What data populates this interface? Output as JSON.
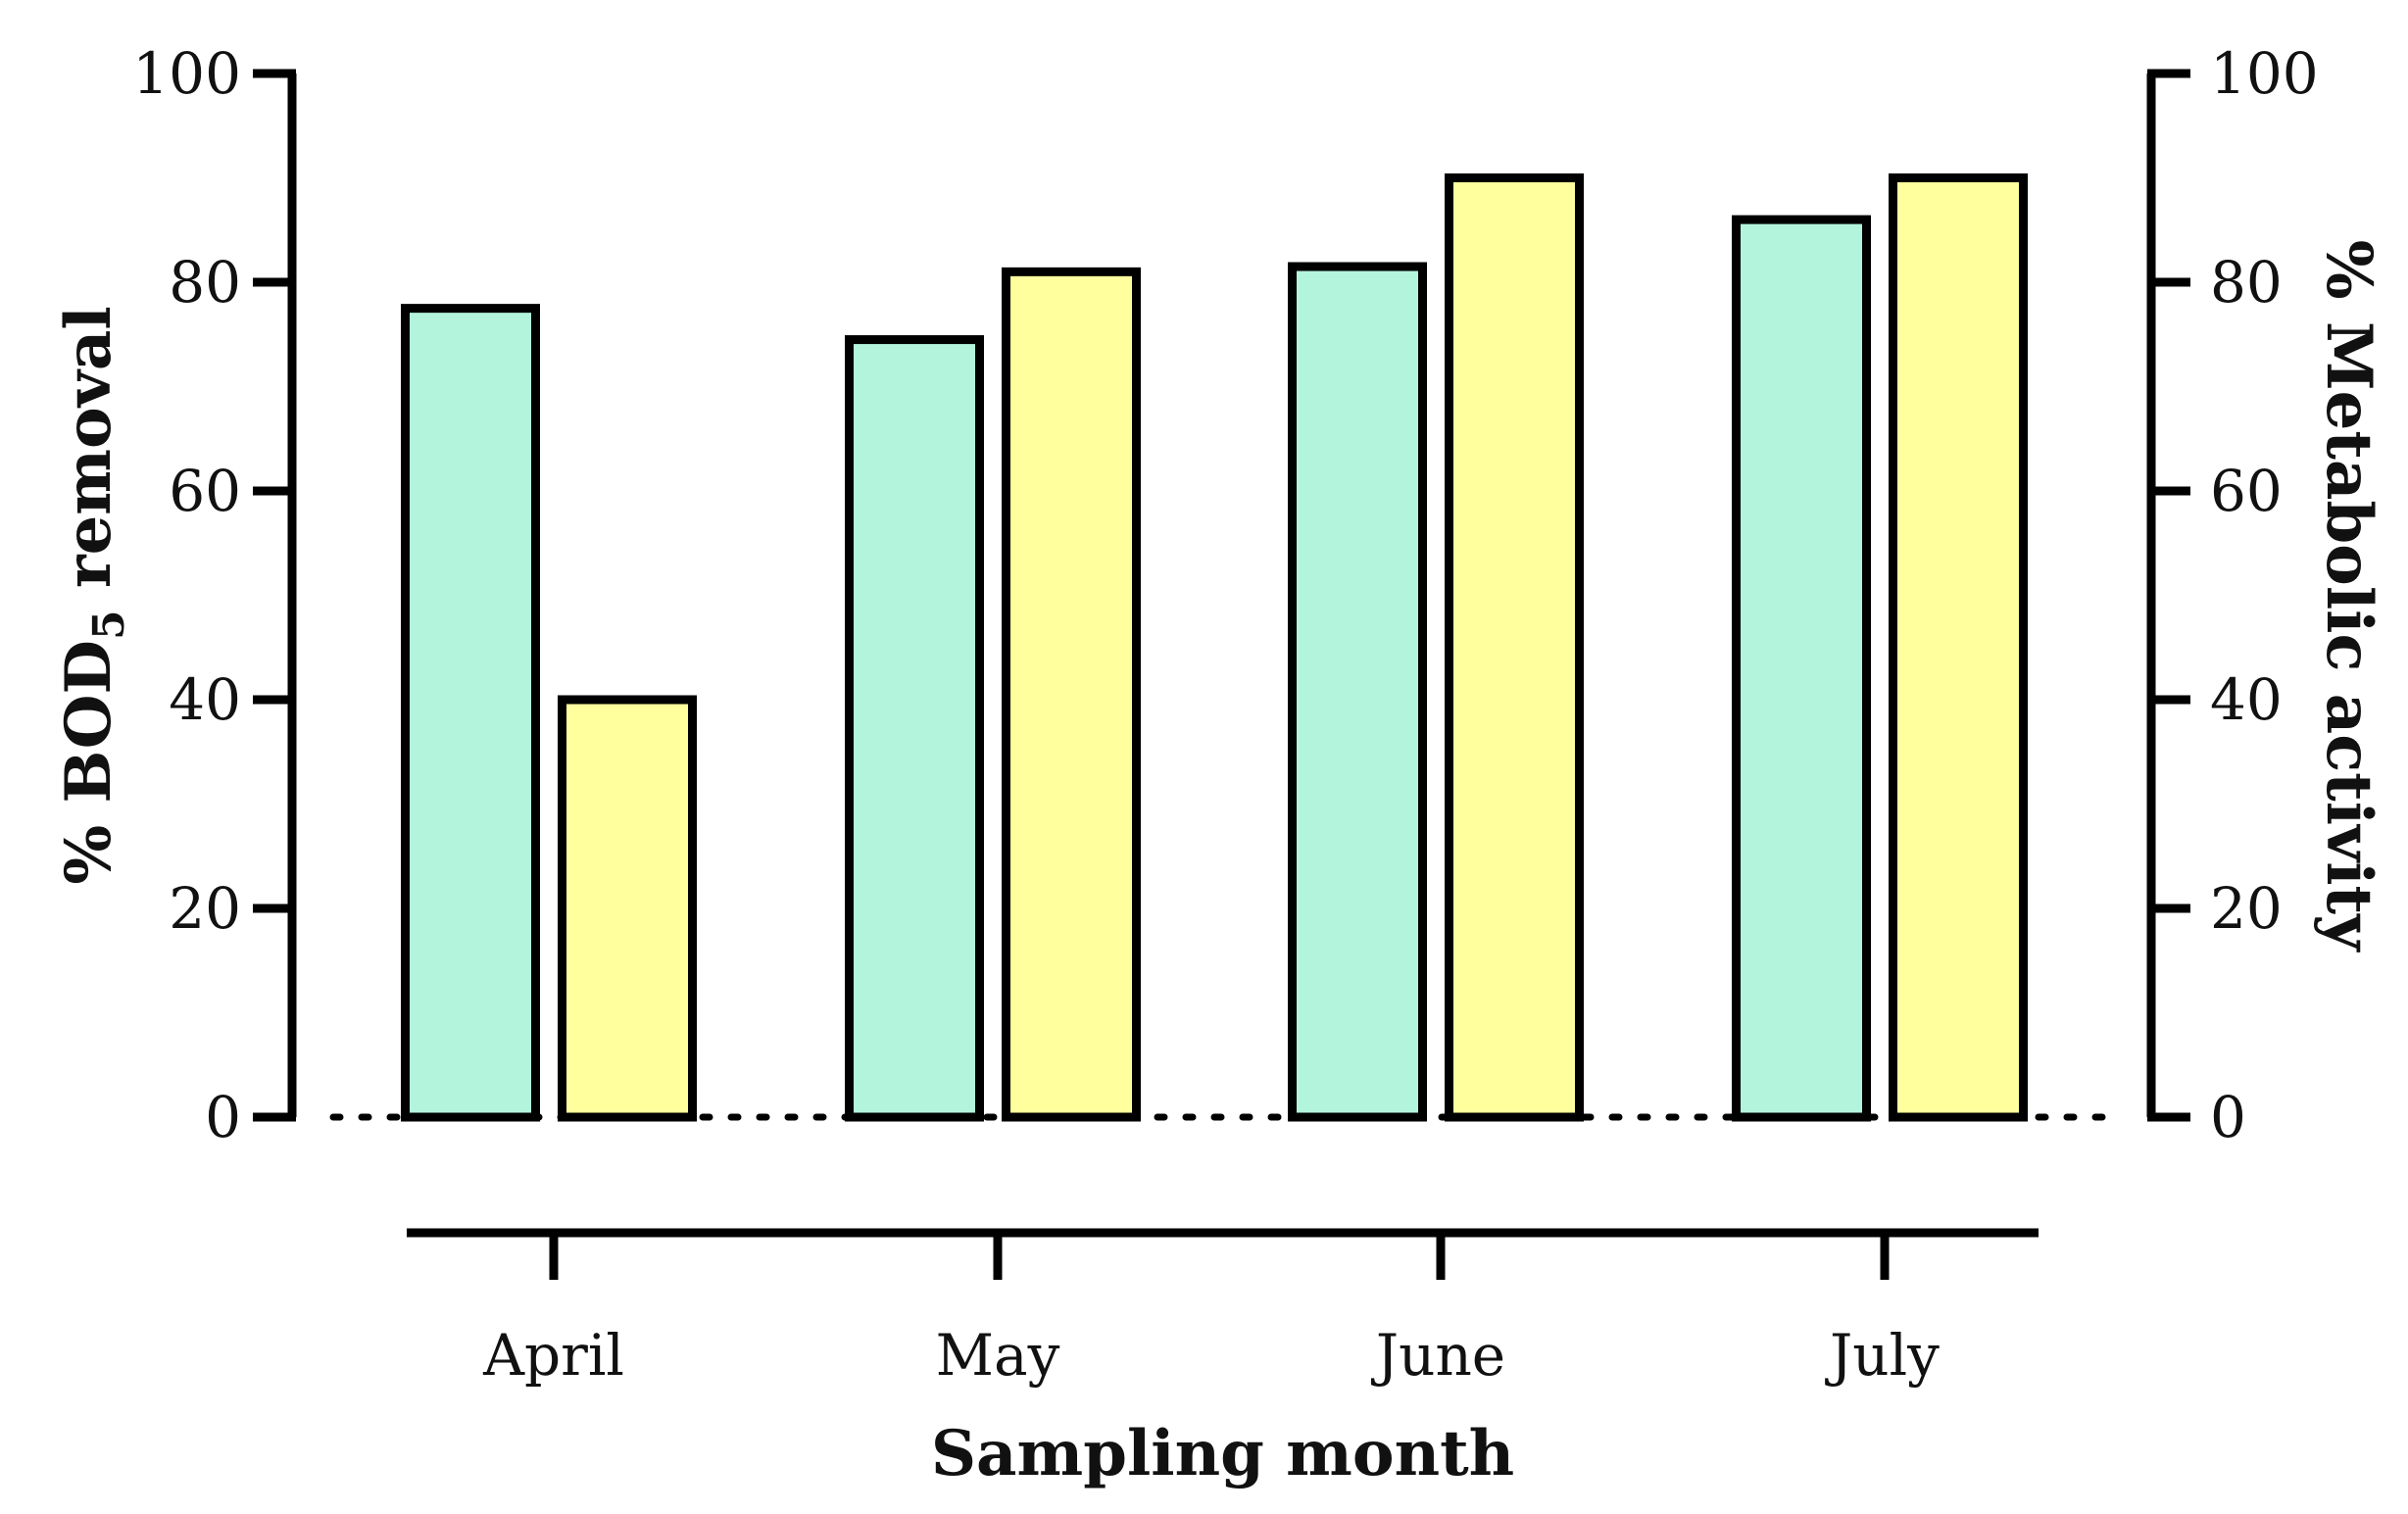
{
  "chart_data": {
    "type": "bar",
    "categories": [
      "April",
      "May",
      "June",
      "July"
    ],
    "series": [
      {
        "values": [
          77.5,
          74.5,
          81.5,
          86
        ],
        "color": "#b3f5dc"
      },
      {
        "values": [
          40,
          81,
          90,
          90
        ],
        "color": "#ffff9e"
      }
    ],
    "xlabel": "Sampling month",
    "ylabel_left": {
      "prefix": "% BOD",
      "sub": "5",
      "suffix": " removal"
    },
    "ylabel_right": "% Metabolic activity",
    "ylim": [
      0,
      100
    ],
    "y_ticks": [
      "0",
      "20",
      "40",
      "60",
      "80",
      "100"
    ],
    "y_ticks_right": [
      "0",
      "20",
      "40",
      "60",
      "80",
      "100"
    ],
    "grid": false,
    "legend": "none",
    "baseline_style": "dotted"
  }
}
